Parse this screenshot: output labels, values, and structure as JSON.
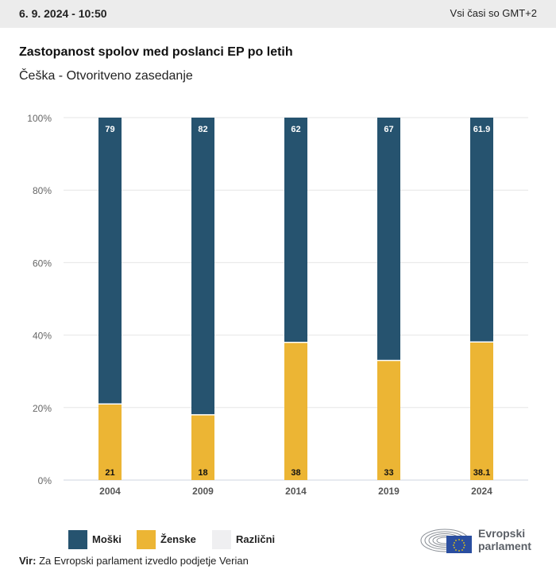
{
  "header": {
    "datetime": "6. 9. 2024 - 10:50",
    "timezone_note": "Vsi časi so GMT+2"
  },
  "title": "Zastopanost spolov med poslanci EP po letih",
  "subtitle": "Češka - Otvoritveno zasedanje",
  "legend": [
    {
      "label": "Moški",
      "color": "#26536f"
    },
    {
      "label": "Ženske",
      "color": "#ecb534"
    },
    {
      "label": "Različni",
      "color": "#efeff1"
    }
  ],
  "source": {
    "prefix": "Vir:",
    "text": "Za Evropski parlament izvedlo podjetje Verian"
  },
  "logo": {
    "line1": "Evropski",
    "line2": "parlament"
  },
  "chart_data": {
    "type": "bar",
    "stacked": true,
    "title": "Zastopanost spolov med poslanci EP po letih",
    "subtitle": "Češka - Otvoritveno zasedanje",
    "xlabel": "",
    "ylabel": "",
    "categories": [
      "2004",
      "2009",
      "2014",
      "2019",
      "2024"
    ],
    "series": [
      {
        "name": "Ženske",
        "color": "#ecb534",
        "values": [
          21,
          18,
          38,
          33,
          38.1
        ],
        "labels": [
          "21",
          "18",
          "38",
          "33",
          "38.1"
        ]
      },
      {
        "name": "Moški",
        "color": "#26536f",
        "values": [
          79,
          82,
          62,
          67,
          61.9
        ],
        "labels": [
          "79",
          "82",
          "62",
          "67",
          "61.9"
        ]
      },
      {
        "name": "Različni",
        "color": "#efeff1",
        "values": [
          0,
          0,
          0,
          0,
          0
        ],
        "labels": [
          "",
          "",
          "",
          "",
          ""
        ]
      }
    ],
    "ylim": [
      0,
      100
    ],
    "yticks": [
      0,
      20,
      40,
      60,
      80,
      100
    ],
    "ytick_labels": [
      "0%",
      "20%",
      "40%",
      "60%",
      "80%",
      "100%"
    ],
    "grid": true,
    "legend_position": "bottom-left"
  }
}
